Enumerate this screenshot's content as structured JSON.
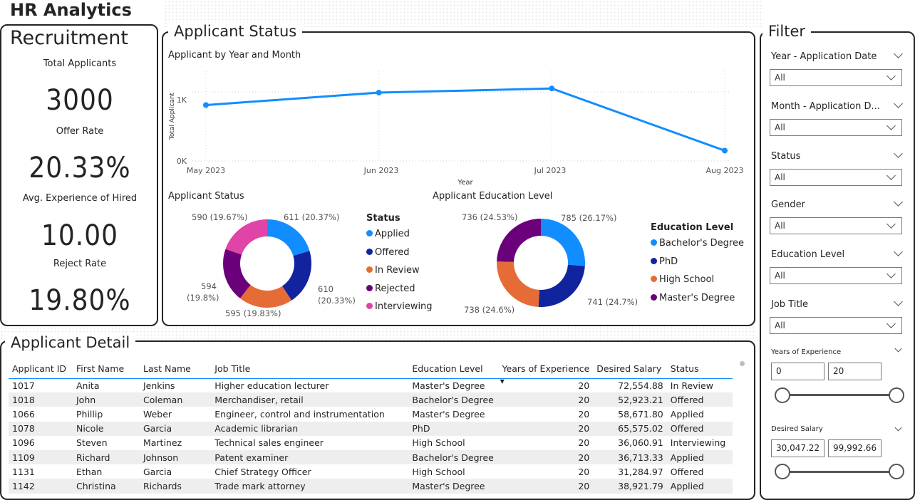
{
  "page_title": "HR Analytics",
  "recruitment": {
    "title": "Recruitment",
    "kpis": [
      {
        "label": "Total Applicants",
        "value": "3000"
      },
      {
        "label": "Offer Rate",
        "value": "20.33%"
      },
      {
        "label": "Avg. Experience of Hired",
        "value": "10.00"
      },
      {
        "label": "Reject Rate",
        "value": "19.80%"
      }
    ]
  },
  "applicant_status": {
    "title": "Applicant Status",
    "line_chart": {
      "title": "Applicant by Year and Month",
      "xlabel": "Year",
      "ylabel": "Total Applicant",
      "y_ticks": [
        "1K",
        "0K"
      ],
      "x_ticks": [
        "May 2023",
        "Jun 2023",
        "Jul 2023",
        "Aug 2023"
      ]
    },
    "status_donut": {
      "title": "Applicant Status",
      "legend_title": "Status",
      "labels": [
        "611 (20.37%)",
        "610",
        "(20.33%)",
        "595 (19.83%)",
        "594",
        "(19.8%)",
        "590 (19.67%)"
      ]
    },
    "education_donut": {
      "title": "Applicant Education Level",
      "legend_title": "Education Level",
      "labels": [
        "785 (26.17%)",
        "741 (24.7%)",
        "738 (24.6%)",
        "736 (24.53%)"
      ]
    }
  },
  "chart_data": [
    {
      "type": "line",
      "title": "Applicant by Year and Month",
      "xlabel": "Year",
      "ylabel": "Total Applicant",
      "categories": [
        "May 2023",
        "Jun 2023",
        "Jul 2023",
        "Aug 2023"
      ],
      "values": [
        810,
        990,
        1050,
        150
      ],
      "ylim": [
        0,
        1300
      ],
      "grid": true,
      "color": "#118dff"
    },
    {
      "type": "pie",
      "title": "Applicant Status",
      "legend_title": "Status",
      "legend_position": "right",
      "categories": [
        "Applied",
        "Offered",
        "In Review",
        "Rejected",
        "Interviewing"
      ],
      "values": [
        611,
        610,
        595,
        594,
        590
      ],
      "colors": [
        "#118dff",
        "#12239e",
        "#e66c37",
        "#6b007b",
        "#e044a7"
      ]
    },
    {
      "type": "pie",
      "title": "Applicant Education Level",
      "legend_title": "Education Level",
      "legend_position": "right",
      "categories": [
        "Bachelor's Degree",
        "PhD",
        "High School",
        "Master's Degree"
      ],
      "values": [
        785,
        741,
        738,
        736
      ],
      "colors": [
        "#118dff",
        "#12239e",
        "#e66c37",
        "#6b007b"
      ]
    }
  ],
  "applicant_detail": {
    "title": "Applicant Detail",
    "columns": [
      "Applicant ID",
      "First Name",
      "Last Name",
      "Job Title",
      "Education Level",
      "Years of Experience",
      "Desired Salary",
      "Status"
    ],
    "rows": [
      [
        "1017",
        "Anita",
        "Jenkins",
        "Higher education lecturer",
        "Master's Degree",
        "20",
        "72,554.88",
        "In Review"
      ],
      [
        "1018",
        "John",
        "Coleman",
        "Merchandiser, retail",
        "Bachelor's Degree",
        "20",
        "52,923.21",
        "Offered"
      ],
      [
        "1066",
        "Phillip",
        "Weber",
        "Engineer, control and instrumentation",
        "Master's Degree",
        "20",
        "58,671.80",
        "Applied"
      ],
      [
        "1078",
        "Nicole",
        "Garcia",
        "Academic librarian",
        "PhD",
        "20",
        "65,575.02",
        "Offered"
      ],
      [
        "1096",
        "Steven",
        "Martinez",
        "Technical sales engineer",
        "High School",
        "20",
        "36,060.91",
        "Interviewing"
      ],
      [
        "1109",
        "Richard",
        "Johnson",
        "Patent examiner",
        "Bachelor's Degree",
        "20",
        "36,713.33",
        "Applied"
      ],
      [
        "1131",
        "Ethan",
        "Garcia",
        "Chief Strategy Officer",
        "High School",
        "20",
        "31,284.97",
        "Offered"
      ],
      [
        "1142",
        "Christina",
        "Richards",
        "Trade mark attorney",
        "Master's Degree",
        "20",
        "38,921.79",
        "Applied"
      ]
    ],
    "sort_column": "Years of Experience"
  },
  "filter": {
    "title": "Filter",
    "dropdowns": [
      {
        "label": "Year - Application Date",
        "value": "All"
      },
      {
        "label": "Month - Application D...",
        "value": "All"
      },
      {
        "label": "Status",
        "value": "All"
      },
      {
        "label": "Gender",
        "value": "All"
      },
      {
        "label": "Education Level",
        "value": "All"
      },
      {
        "label": "Job Title",
        "value": "All"
      }
    ],
    "years_of_experience": {
      "label": "Years of Experience",
      "min": "0",
      "max": "20",
      "slider_low": 0,
      "slider_high": 1
    },
    "desired_salary": {
      "label": "Desired Salary",
      "min": "30,047.22",
      "max": "99,992.66",
      "slider_low": 0,
      "slider_high": 1
    }
  }
}
